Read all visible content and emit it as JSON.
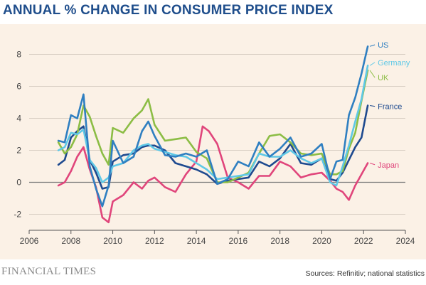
{
  "header": {
    "title": "ANNUAL % CHANGE IN CONSUMER PRICE INDEX"
  },
  "footer": {
    "brand": "FINANCIAL TIMES",
    "sources": "Sources: Refinitiv; national statistics"
  },
  "chart_data": {
    "type": "line",
    "title": "ANNUAL % CHANGE IN CONSUMER PRICE INDEX",
    "xlabel": "",
    "ylabel": "",
    "xlim": [
      2006,
      2024
    ],
    "ylim": [
      -3,
      9
    ],
    "x_ticks": [
      "2006",
      "2008",
      "2010",
      "2012",
      "2014",
      "2016",
      "2018",
      "2020",
      "2022",
      "2024"
    ],
    "y_ticks": [
      "-2",
      "0",
      "2",
      "4",
      "6",
      "8"
    ],
    "grid": "horizontal",
    "series": [
      {
        "name": "US",
        "color": "#2f7fc1",
        "x": [
          2007.4,
          2007.7,
          2008.0,
          2008.3,
          2008.6,
          2008.9,
          2009.2,
          2009.5,
          2009.8,
          2010.0,
          2010.5,
          2011.0,
          2011.4,
          2011.7,
          2012.0,
          2012.5,
          2013.0,
          2013.5,
          2014.0,
          2014.5,
          2015.0,
          2015.5,
          2016.0,
          2016.5,
          2017.0,
          2017.5,
          2018.0,
          2018.5,
          2019.0,
          2019.5,
          2020.0,
          2020.4,
          2020.7,
          2021.0,
          2021.3,
          2021.6,
          2021.9,
          2022.2
        ],
        "values": [
          2.6,
          2.5,
          4.2,
          4.0,
          5.5,
          1.0,
          -0.4,
          -1.5,
          -0.2,
          2.6,
          1.2,
          1.6,
          3.2,
          3.8,
          2.9,
          1.7,
          1.6,
          1.8,
          1.6,
          2.0,
          -0.1,
          0.2,
          1.3,
          1.0,
          2.5,
          1.6,
          2.1,
          2.8,
          1.6,
          1.8,
          2.4,
          0.2,
          1.3,
          1.4,
          4.2,
          5.3,
          6.8,
          8.5
        ]
      },
      {
        "name": "Germany",
        "color": "#5fc8e6",
        "x": [
          2007.4,
          2007.7,
          2008.0,
          2008.3,
          2008.6,
          2008.9,
          2009.2,
          2009.5,
          2009.8,
          2010.0,
          2010.5,
          2011.0,
          2011.4,
          2011.7,
          2012.0,
          2012.5,
          2013.0,
          2013.5,
          2014.0,
          2014.5,
          2015.0,
          2015.5,
          2016.0,
          2016.5,
          2017.0,
          2017.5,
          2018.0,
          2018.5,
          2019.0,
          2019.5,
          2020.0,
          2020.4,
          2020.7,
          2021.0,
          2021.3,
          2021.6,
          2021.9,
          2022.2
        ],
        "values": [
          2.0,
          2.2,
          3.1,
          3.0,
          3.3,
          1.4,
          0.9,
          0.0,
          0.3,
          1.0,
          1.2,
          2.0,
          2.3,
          2.4,
          2.1,
          1.9,
          1.7,
          1.6,
          1.2,
          0.8,
          0.2,
          0.3,
          0.4,
          0.5,
          1.8,
          1.6,
          1.6,
          2.0,
          1.5,
          1.2,
          1.5,
          0.0,
          -0.2,
          1.0,
          2.3,
          3.8,
          5.2,
          7.3
        ]
      },
      {
        "name": "UK",
        "color": "#8cbd45",
        "x": [
          2007.4,
          2007.7,
          2008.0,
          2008.3,
          2008.6,
          2008.9,
          2009.2,
          2009.5,
          2009.8,
          2010.0,
          2010.5,
          2011.0,
          2011.4,
          2011.7,
          2012.0,
          2012.5,
          2013.0,
          2013.5,
          2014.0,
          2014.5,
          2015.0,
          2015.5,
          2016.0,
          2016.5,
          2017.0,
          2017.5,
          2018.0,
          2018.5,
          2019.0,
          2019.5,
          2020.0,
          2020.4,
          2020.7,
          2021.0,
          2021.3,
          2021.6,
          2021.9,
          2022.2
        ],
        "values": [
          2.5,
          1.8,
          2.2,
          3.0,
          4.8,
          4.1,
          2.9,
          1.8,
          1.1,
          3.4,
          3.1,
          4.0,
          4.5,
          5.2,
          3.6,
          2.6,
          2.7,
          2.8,
          1.9,
          1.5,
          0.0,
          0.0,
          0.3,
          0.6,
          1.8,
          2.9,
          3.0,
          2.5,
          1.8,
          1.7,
          1.8,
          0.5,
          0.5,
          0.7,
          2.1,
          3.1,
          5.1,
          7.0
        ]
      },
      {
        "name": "France",
        "color": "#1e4a8f",
        "x": [
          2007.4,
          2007.7,
          2008.0,
          2008.3,
          2008.6,
          2008.9,
          2009.2,
          2009.5,
          2009.8,
          2010.0,
          2010.5,
          2011.0,
          2011.4,
          2011.7,
          2012.0,
          2012.5,
          2013.0,
          2013.5,
          2014.0,
          2014.5,
          2015.0,
          2015.5,
          2016.0,
          2016.5,
          2017.0,
          2017.5,
          2018.0,
          2018.5,
          2019.0,
          2019.5,
          2020.0,
          2020.4,
          2020.7,
          2021.0,
          2021.3,
          2021.6,
          2021.9,
          2022.2
        ],
        "values": [
          1.1,
          1.4,
          2.8,
          3.2,
          3.5,
          1.4,
          0.6,
          -0.4,
          -0.3,
          1.3,
          1.7,
          1.8,
          2.2,
          2.3,
          2.3,
          2.0,
          1.2,
          1.0,
          0.8,
          0.5,
          -0.1,
          0.1,
          0.2,
          0.3,
          1.3,
          1.0,
          1.5,
          2.4,
          1.2,
          1.1,
          1.5,
          0.2,
          0.1,
          0.6,
          1.4,
          2.2,
          2.8,
          4.8
        ]
      },
      {
        "name": "Japan",
        "color": "#e0457b",
        "x": [
          2007.4,
          2007.7,
          2008.0,
          2008.3,
          2008.6,
          2008.9,
          2009.2,
          2009.5,
          2009.8,
          2010.0,
          2010.5,
          2011.0,
          2011.4,
          2011.7,
          2012.0,
          2012.5,
          2013.0,
          2013.5,
          2014.0,
          2014.3,
          2014.6,
          2015.0,
          2015.5,
          2016.0,
          2016.5,
          2017.0,
          2017.5,
          2018.0,
          2018.5,
          2019.0,
          2019.5,
          2020.0,
          2020.4,
          2020.7,
          2021.0,
          2021.3,
          2021.6,
          2021.9,
          2022.2
        ],
        "values": [
          -0.2,
          0.0,
          0.7,
          1.6,
          2.2,
          0.8,
          -0.3,
          -2.2,
          -2.5,
          -1.2,
          -0.8,
          0.0,
          -0.4,
          0.1,
          0.3,
          -0.3,
          -0.6,
          0.5,
          1.3,
          3.5,
          3.2,
          2.4,
          0.3,
          0.0,
          -0.4,
          0.4,
          0.4,
          1.3,
          1.0,
          0.3,
          0.5,
          0.6,
          0.1,
          -0.4,
          -0.6,
          -1.1,
          -0.2,
          0.5,
          1.2
        ]
      }
    ],
    "series_labels": {
      "US": "US",
      "Germany": "Germany",
      "UK": "UK",
      "France": "France",
      "Japan": "Japan"
    }
  }
}
